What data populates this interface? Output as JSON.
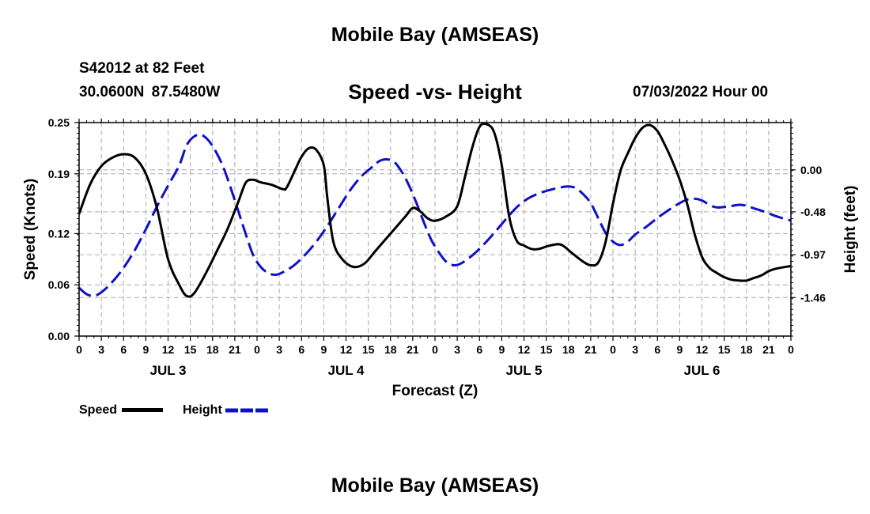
{
  "header": {
    "title": "Mobile Bay (AMSEAS)",
    "station": "S42012 at 82 Feet",
    "coords": "30.0600N  87.5480W",
    "chart_title": "Speed -vs- Height",
    "forecast_time": "07/03/2022 Hour 00"
  },
  "footer": {
    "title": "Mobile Bay (AMSEAS)"
  },
  "legend": {
    "speed": "Speed",
    "height": "Height"
  },
  "colors": {
    "speed": "#000000",
    "height": "#1010c8",
    "grid": "#aaaaaa"
  },
  "chart_data": {
    "type": "line",
    "title": "Speed -vs- Height",
    "xlabel": "Forecast (Z)",
    "ylabel": "Speed (Knots)",
    "y2label": "Height (feet)",
    "xlim": [
      0,
      96
    ],
    "ylim": [
      0,
      0.25
    ],
    "y2lim": [
      -1.9,
      0.54
    ],
    "x_tick_labels": [
      "0",
      "3",
      "6",
      "9",
      "12",
      "15",
      "18",
      "21",
      "0",
      "3",
      "6",
      "9",
      "12",
      "15",
      "18",
      "21",
      "0",
      "3",
      "6",
      "9",
      "12",
      "15",
      "18",
      "21",
      "0",
      "3",
      "6",
      "9",
      "12",
      "15",
      "18",
      "21",
      "0"
    ],
    "day_labels": [
      {
        "x": 12,
        "label": "JUL 3"
      },
      {
        "x": 36,
        "label": "JUL 4"
      },
      {
        "x": 60,
        "label": "JUL 5"
      },
      {
        "x": 84,
        "label": "JUL 6"
      }
    ],
    "y_ticks": [
      "0.00",
      "0.06",
      "0.12",
      "0.19",
      "0.25"
    ],
    "y2_ticks": [
      "0.00",
      "-0.48",
      "-0.97",
      "-1.46"
    ],
    "series": [
      {
        "name": "Speed",
        "axis": "left",
        "points": [
          [
            0,
            0.143
          ],
          [
            1.5,
            0.178
          ],
          [
            3,
            0.199
          ],
          [
            4.5,
            0.209
          ],
          [
            6,
            0.213
          ],
          [
            7.5,
            0.209
          ],
          [
            9,
            0.19
          ],
          [
            10.5,
            0.15
          ],
          [
            12,
            0.09
          ],
          [
            13.5,
            0.06
          ],
          [
            14.5,
            0.047
          ],
          [
            15.5,
            0.05
          ],
          [
            17,
            0.072
          ],
          [
            18.5,
            0.098
          ],
          [
            20,
            0.125
          ],
          [
            21.5,
            0.158
          ],
          [
            22.5,
            0.18
          ],
          [
            23.5,
            0.183
          ],
          [
            24.5,
            0.18
          ],
          [
            26,
            0.177
          ],
          [
            27.5,
            0.172
          ],
          [
            28,
            0.174
          ],
          [
            29,
            0.192
          ],
          [
            30,
            0.21
          ],
          [
            31,
            0.22
          ],
          [
            32,
            0.218
          ],
          [
            33,
            0.2
          ],
          [
            33.5,
            0.16
          ],
          [
            34.3,
            0.11
          ],
          [
            35.5,
            0.09
          ],
          [
            37,
            0.081
          ],
          [
            38.5,
            0.085
          ],
          [
            40,
            0.1
          ],
          [
            42,
            0.12
          ],
          [
            44,
            0.14
          ],
          [
            45,
            0.15
          ],
          [
            46,
            0.146
          ],
          [
            47,
            0.138
          ],
          [
            48,
            0.135
          ],
          [
            49.5,
            0.14
          ],
          [
            51,
            0.152
          ],
          [
            52,
            0.185
          ],
          [
            53,
            0.22
          ],
          [
            54,
            0.245
          ],
          [
            55,
            0.248
          ],
          [
            56,
            0.238
          ],
          [
            57,
            0.2
          ],
          [
            58,
            0.14
          ],
          [
            59,
            0.112
          ],
          [
            60,
            0.106
          ],
          [
            61,
            0.102
          ],
          [
            62,
            0.102
          ],
          [
            63.5,
            0.106
          ],
          [
            65,
            0.107
          ],
          [
            66.5,
            0.097
          ],
          [
            68,
            0.087
          ],
          [
            69,
            0.083
          ],
          [
            70,
            0.086
          ],
          [
            71,
            0.11
          ],
          [
            72,
            0.155
          ],
          [
            73,
            0.193
          ],
          [
            74,
            0.214
          ],
          [
            75,
            0.232
          ],
          [
            76,
            0.244
          ],
          [
            77,
            0.247
          ],
          [
            78,
            0.24
          ],
          [
            79,
            0.224
          ],
          [
            80,
            0.205
          ],
          [
            81,
            0.183
          ],
          [
            82,
            0.155
          ],
          [
            83,
            0.12
          ],
          [
            84,
            0.093
          ],
          [
            85,
            0.08
          ],
          [
            86,
            0.074
          ],
          [
            87,
            0.069
          ],
          [
            88,
            0.066
          ],
          [
            89,
            0.065
          ],
          [
            90,
            0.065
          ],
          [
            91,
            0.068
          ],
          [
            92,
            0.071
          ],
          [
            93,
            0.076
          ],
          [
            94,
            0.079
          ],
          [
            96,
            0.082
          ]
        ]
      },
      {
        "name": "Height",
        "axis": "right",
        "style": "dashed",
        "points": [
          [
            0,
            -1.35
          ],
          [
            1,
            -1.42
          ],
          [
            2,
            -1.44
          ],
          [
            3,
            -1.4
          ],
          [
            4.5,
            -1.28
          ],
          [
            6,
            -1.12
          ],
          [
            7.5,
            -0.92
          ],
          [
            9,
            -0.68
          ],
          [
            10.5,
            -0.42
          ],
          [
            12,
            -0.18
          ],
          [
            13.5,
            0.05
          ],
          [
            14.5,
            0.28
          ],
          [
            15.5,
            0.38
          ],
          [
            16.5,
            0.4
          ],
          [
            17.5,
            0.33
          ],
          [
            18.5,
            0.2
          ],
          [
            19.5,
            0.02
          ],
          [
            20.5,
            -0.22
          ],
          [
            21.5,
            -0.48
          ],
          [
            22.5,
            -0.74
          ],
          [
            23.5,
            -0.98
          ],
          [
            24.5,
            -1.11
          ],
          [
            25.5,
            -1.18
          ],
          [
            26.5,
            -1.2
          ],
          [
            27.5,
            -1.17
          ],
          [
            29,
            -1.09
          ],
          [
            30.5,
            -0.97
          ],
          [
            32,
            -0.82
          ],
          [
            33.5,
            -0.64
          ],
          [
            35,
            -0.44
          ],
          [
            36.5,
            -0.24
          ],
          [
            38,
            -0.08
          ],
          [
            39.5,
            0.03
          ],
          [
            40.5,
            0.1
          ],
          [
            41.5,
            0.12
          ],
          [
            42.5,
            0.09
          ],
          [
            43.5,
            -0.02
          ],
          [
            44.5,
            -0.18
          ],
          [
            45.5,
            -0.38
          ],
          [
            46.5,
            -0.6
          ],
          [
            47.5,
            -0.8
          ],
          [
            48.5,
            -0.94
          ],
          [
            49.5,
            -1.05
          ],
          [
            50.5,
            -1.09
          ],
          [
            51.5,
            -1.07
          ],
          [
            53,
            -0.98
          ],
          [
            54.5,
            -0.86
          ],
          [
            56,
            -0.72
          ],
          [
            57.5,
            -0.57
          ],
          [
            59,
            -0.43
          ],
          [
            60.5,
            -0.33
          ],
          [
            62,
            -0.27
          ],
          [
            63.5,
            -0.23
          ],
          [
            65,
            -0.2
          ],
          [
            66,
            -0.19
          ],
          [
            67,
            -0.21
          ],
          [
            68,
            -0.28
          ],
          [
            69,
            -0.38
          ],
          [
            70,
            -0.55
          ],
          [
            71,
            -0.72
          ],
          [
            72,
            -0.82
          ],
          [
            73,
            -0.86
          ],
          [
            74,
            -0.82
          ],
          [
            75,
            -0.74
          ],
          [
            76.5,
            -0.65
          ],
          [
            78,
            -0.55
          ],
          [
            79.5,
            -0.46
          ],
          [
            81,
            -0.38
          ],
          [
            82,
            -0.34
          ],
          [
            83,
            -0.33
          ],
          [
            84,
            -0.35
          ],
          [
            85,
            -0.4
          ],
          [
            86,
            -0.43
          ],
          [
            87.5,
            -0.42
          ],
          [
            89,
            -0.4
          ],
          [
            90,
            -0.41
          ],
          [
            91,
            -0.44
          ],
          [
            92.5,
            -0.48
          ],
          [
            94,
            -0.53
          ],
          [
            96,
            -0.58
          ]
        ]
      }
    ]
  }
}
